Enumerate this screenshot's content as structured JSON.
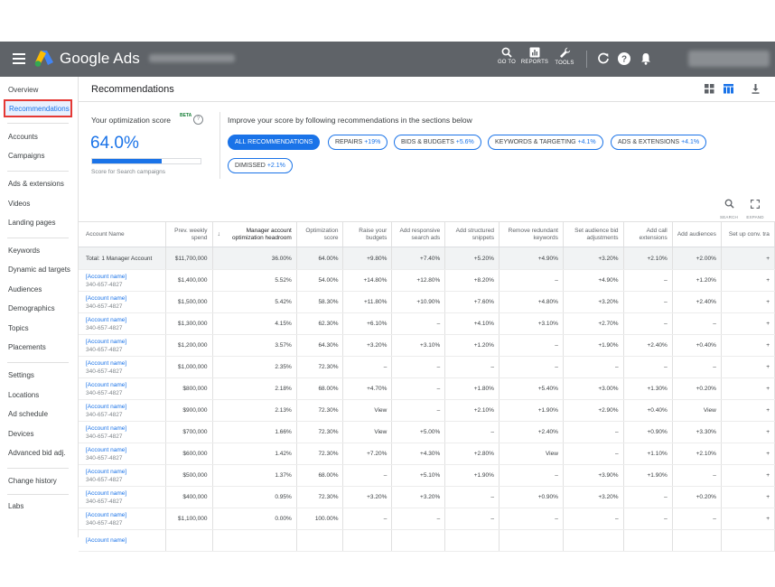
{
  "header": {
    "brand": "Google Ads",
    "buttons": [
      {
        "label": "GO TO",
        "icon": "search-icon"
      },
      {
        "label": "REPORTS",
        "icon": "reports-icon"
      },
      {
        "label": "TOOLS",
        "icon": "wrench-icon"
      }
    ]
  },
  "sidebar": {
    "items": [
      {
        "label": "Overview"
      },
      {
        "label": "Recommendations",
        "active": true
      },
      {
        "label": "Accounts"
      },
      {
        "label": "Campaigns"
      },
      {
        "label": "Ads & extensions"
      },
      {
        "label": "Videos"
      },
      {
        "label": "Landing pages"
      },
      {
        "label": "Keywords"
      },
      {
        "label": "Dynamic ad targets"
      },
      {
        "label": "Audiences"
      },
      {
        "label": "Demographics"
      },
      {
        "label": "Topics"
      },
      {
        "label": "Placements"
      },
      {
        "label": "Settings"
      },
      {
        "label": "Locations"
      },
      {
        "label": "Ad schedule"
      },
      {
        "label": "Devices"
      },
      {
        "label": "Advanced bid adj."
      },
      {
        "label": "Change history"
      },
      {
        "label": "Labs"
      }
    ]
  },
  "page": {
    "title": "Recommendations"
  },
  "optimization": {
    "label": "Your optimization score",
    "beta": "BETA",
    "help": "?",
    "score": "64.0%",
    "score_fraction": 0.64,
    "subtitle": "Score for Search campaigns"
  },
  "improve_text": "Improve your score by following recommendations in the sections below",
  "chips": [
    {
      "label": "ALL RECOMMENDATIONS",
      "value": ""
    },
    {
      "label": "REPAIRS",
      "value": "+19%"
    },
    {
      "label": "BIDS & BUDGETS",
      "value": "+5.6%"
    },
    {
      "label": "KEYWORDS & TARGETING",
      "value": "+4.1%"
    },
    {
      "label": "ADS & EXTENSIONS",
      "value": "+4.1%"
    },
    {
      "label": "DIMISSED",
      "value": "+2.1%"
    }
  ],
  "tools": {
    "search": "SEARCH",
    "expand": "EXPAND"
  },
  "table": {
    "columns": [
      "Account Name",
      "Prev. weekly spend",
      "Manager account optimization headroom",
      "Optimization score",
      "Raise your budgets",
      "Add responsive search ads",
      "Add structured snippets",
      "Remove redundant keywords",
      "Set audience bid adjustments",
      "Add call extensions",
      "Add audiences",
      "Set up conv. tra"
    ],
    "total": [
      "Total: 1 Manager Account",
      "$11,700,000",
      "36.00%",
      "64.00%",
      "+9.80%",
      "+7.40%",
      "+5.20%",
      "+4.90%",
      "+3.20%",
      "+2.10%",
      "+2.00%",
      "+"
    ],
    "rows": [
      {
        "name": "[Account name]",
        "id": "340-657-4827",
        "cells": [
          "$1,400,000",
          "5.52%",
          "54.00%",
          "+14.80%",
          "+12.80%",
          "+8.20%",
          "–",
          "+4.90%",
          "–",
          "+1.20%",
          "+"
        ]
      },
      {
        "name": "[Account name]",
        "id": "340-657-4827",
        "cells": [
          "$1,500,000",
          "5.42%",
          "58.30%",
          "+11.80%",
          "+10.90%",
          "+7.60%",
          "+4.80%",
          "+3.20%",
          "–",
          "+2.40%",
          "+"
        ]
      },
      {
        "name": "[Account name]",
        "id": "340-657-4827",
        "cells": [
          "$1,300,000",
          "4.15%",
          "62.30%",
          "+6.10%",
          "–",
          "+4.10%",
          "+3.10%",
          "+2.70%",
          "–",
          "–",
          "+"
        ]
      },
      {
        "name": "[Account name]",
        "id": "340-657-4827",
        "cells": [
          "$1,200,000",
          "3.57%",
          "64.30%",
          "+3.20%",
          "+3.10%",
          "+1.20%",
          "–",
          "+1.90%",
          "+2.40%",
          "+0.40%",
          "+"
        ]
      },
      {
        "name": "[Account name]",
        "id": "340-657-4827",
        "cells": [
          "$1,000,000",
          "2.35%",
          "72.30%",
          "–",
          "–",
          "–",
          "–",
          "–",
          "–",
          "–",
          "+"
        ]
      },
      {
        "name": "[Account name]",
        "id": "340-657-4827",
        "cells": [
          "$800,000",
          "2.18%",
          "68.00%",
          "+4.70%",
          "–",
          "+1.80%",
          "+5.40%",
          "+3.00%",
          "+1.30%",
          "+0.20%",
          "+"
        ]
      },
      {
        "name": "[Account name]",
        "id": "340-657-4827",
        "cells": [
          "$900,000",
          "2.13%",
          "72.30%",
          "View",
          "–",
          "+2.10%",
          "+1.90%",
          "+2.90%",
          "+0.40%",
          "View",
          "+"
        ]
      },
      {
        "name": "[Account name]",
        "id": "340-657-4827",
        "cells": [
          "$700,000",
          "1.66%",
          "72.30%",
          "View",
          "+5.00%",
          "–",
          "+2.40%",
          "–",
          "+0.90%",
          "+3.30%",
          "+"
        ]
      },
      {
        "name": "[Account name]",
        "id": "340-657-4827",
        "cells": [
          "$600,000",
          "1.42%",
          "72.30%",
          "+7.20%",
          "+4.30%",
          "+2.80%",
          "View",
          "–",
          "+1.10%",
          "+2.10%",
          "+"
        ]
      },
      {
        "name": "[Account name]",
        "id": "340-657-4827",
        "cells": [
          "$500,000",
          "1.37%",
          "68.00%",
          "–",
          "+5.10%",
          "+1.90%",
          "–",
          "+3.90%",
          "+1.90%",
          "–",
          "+"
        ]
      },
      {
        "name": "[Account name]",
        "id": "340-657-4827",
        "cells": [
          "$400,000",
          "0.95%",
          "72.30%",
          "+3.20%",
          "+3.20%",
          "–",
          "+0.90%",
          "+3.20%",
          "–",
          "+0.20%",
          "+"
        ]
      },
      {
        "name": "[Account name]",
        "id": "340-657-4827",
        "cells": [
          "$1,100,000",
          "0.00%",
          "100.00%",
          "–",
          "–",
          "–",
          "–",
          "–",
          "–",
          "–",
          "+"
        ]
      },
      {
        "name": "[Account name]",
        "id": "",
        "cells": [
          "",
          "",
          "",
          "",
          "",
          "",
          "",
          "",
          "",
          "",
          ""
        ]
      }
    ]
  }
}
